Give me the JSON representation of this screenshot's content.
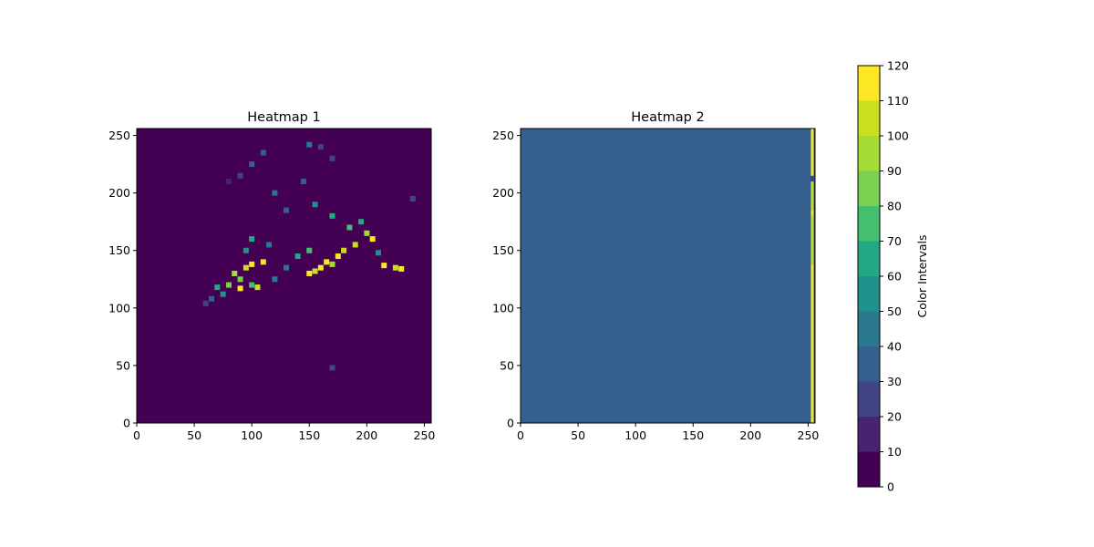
{
  "chart_data": [
    {
      "type": "heatmap",
      "title": "Heatmap 1",
      "xlabel": "",
      "ylabel": "",
      "xlim": [
        0,
        256
      ],
      "ylim": [
        0,
        256
      ],
      "xticks": [
        "0",
        "50",
        "100",
        "150",
        "200",
        "250"
      ],
      "yticks": [
        "0",
        "50",
        "100",
        "150",
        "200",
        "250"
      ],
      "background_value": 0,
      "cells": [
        [
          80,
          210,
          15
        ],
        [
          90,
          215,
          25
        ],
        [
          100,
          225,
          35
        ],
        [
          110,
          235,
          30
        ],
        [
          150,
          242,
          40
        ],
        [
          160,
          240,
          25
        ],
        [
          170,
          230,
          20
        ],
        [
          145,
          210,
          35
        ],
        [
          120,
          200,
          45
        ],
        [
          130,
          185,
          35
        ],
        [
          155,
          190,
          55
        ],
        [
          170,
          180,
          65
        ],
        [
          185,
          170,
          75
        ],
        [
          200,
          165,
          95
        ],
        [
          205,
          160,
          115
        ],
        [
          190,
          155,
          105
        ],
        [
          180,
          150,
          100
        ],
        [
          175,
          145,
          115
        ],
        [
          165,
          140,
          110
        ],
        [
          160,
          135,
          112
        ],
        [
          150,
          130,
          115
        ],
        [
          155,
          132,
          105
        ],
        [
          170,
          138,
          95
        ],
        [
          150,
          150,
          70
        ],
        [
          140,
          145,
          60
        ],
        [
          130,
          135,
          45
        ],
        [
          120,
          125,
          40
        ],
        [
          110,
          140,
          110
        ],
        [
          100,
          138,
          115
        ],
        [
          95,
          135,
          105
        ],
        [
          85,
          130,
          95
        ],
        [
          90,
          125,
          80
        ],
        [
          100,
          120,
          70
        ],
        [
          105,
          118,
          100
        ],
        [
          90,
          117,
          112
        ],
        [
          80,
          120,
          85
        ],
        [
          70,
          118,
          60
        ],
        [
          75,
          112,
          50
        ],
        [
          65,
          108,
          30
        ],
        [
          60,
          104,
          20
        ],
        [
          100,
          160,
          65
        ],
        [
          95,
          150,
          55
        ],
        [
          115,
          155,
          45
        ],
        [
          215,
          137,
          110
        ],
        [
          225,
          135,
          100
        ],
        [
          230,
          134,
          115
        ],
        [
          170,
          48,
          25
        ],
        [
          240,
          195,
          20
        ],
        [
          210,
          148,
          50
        ],
        [
          195,
          175,
          60
        ]
      ]
    },
    {
      "type": "heatmap",
      "title": "Heatmap 2",
      "xlabel": "",
      "ylabel": "",
      "xlim": [
        0,
        256
      ],
      "ylim": [
        0,
        256
      ],
      "xticks": [
        "0",
        "50",
        "100",
        "150",
        "200",
        "250"
      ],
      "yticks": [
        "0",
        "50",
        "100",
        "150",
        "200",
        "250"
      ],
      "background_value": 35,
      "edge_stripe": {
        "x": 254,
        "segments": [
          [
            0,
            5,
            120
          ],
          [
            5,
            130,
            110
          ],
          [
            130,
            138,
            120
          ],
          [
            138,
            180,
            100
          ],
          [
            180,
            185,
            120
          ],
          [
            185,
            210,
            100
          ],
          [
            210,
            215,
            20
          ],
          [
            215,
            256,
            115
          ]
        ]
      }
    }
  ],
  "colorbar": {
    "label": "Color Intervals",
    "levels": [
      0,
      10,
      20,
      30,
      40,
      50,
      60,
      70,
      80,
      90,
      100,
      110,
      120
    ],
    "ticks": [
      "0",
      "10",
      "20",
      "30",
      "40",
      "50",
      "60",
      "70",
      "80",
      "90",
      "100",
      "110",
      "120"
    ],
    "colors": [
      "#440154",
      "#482374",
      "#414487",
      "#355f8d",
      "#2a788e",
      "#21918c",
      "#22a884",
      "#44bf70",
      "#7ad151",
      "#a5db36",
      "#c8e020",
      "#fde725"
    ]
  }
}
